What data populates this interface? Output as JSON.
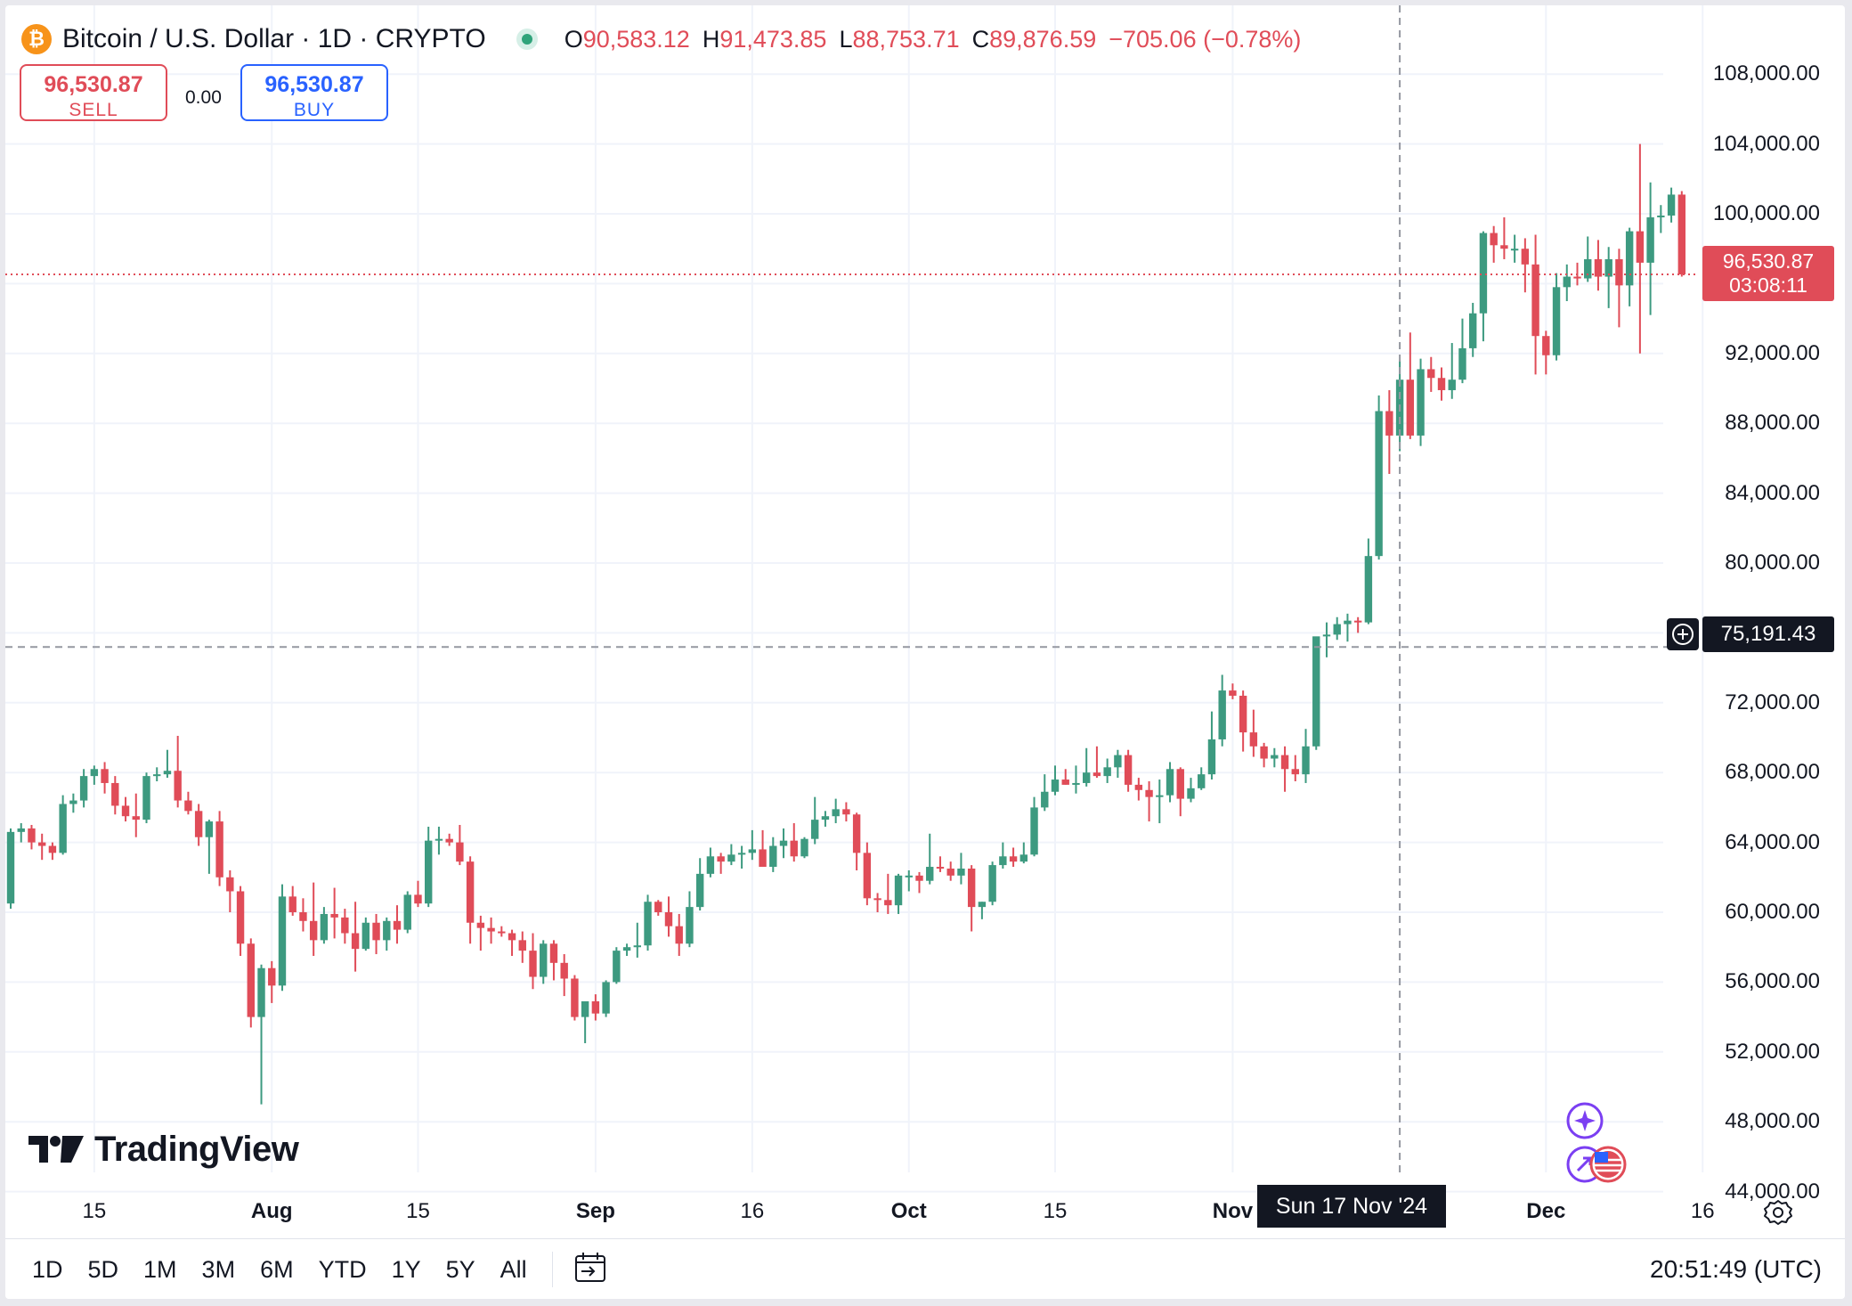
{
  "header": {
    "coin_symbol": "₿",
    "title": "Bitcoin / U.S. Dollar · 1D · CRYPTO",
    "ohlc": {
      "o_label": "O",
      "o_value": "90,583.12",
      "h_label": "H",
      "h_value": "91,473.85",
      "l_label": "L",
      "l_value": "88,753.71",
      "c_label": "C",
      "c_value": "89,876.59",
      "change": "−705.06 (−0.78%)"
    }
  },
  "trade": {
    "sell_price": "96,530.87",
    "sell_label": "SELL",
    "spread": "0.00",
    "buy_price": "96,530.87",
    "buy_label": "BUY"
  },
  "price_axis": {
    "labels": [
      "108,000.00",
      "104,000.00",
      "100,000.00",
      "92,000.00",
      "88,000.00",
      "84,000.00",
      "80,000.00",
      "72,000.00",
      "68,000.00",
      "64,000.00",
      "60,000.00",
      "56,000.00",
      "52,000.00",
      "48,000.00",
      "44,000.00"
    ],
    "current_price": "96,530.87",
    "countdown": "03:08:11",
    "crosshair_price": "75,191.43"
  },
  "time_axis": {
    "labels": [
      {
        "text": "15",
        "bold": false
      },
      {
        "text": "Aug",
        "bold": true
      },
      {
        "text": "15",
        "bold": false
      },
      {
        "text": "Sep",
        "bold": true
      },
      {
        "text": "16",
        "bold": false
      },
      {
        "text": "Oct",
        "bold": true
      },
      {
        "text": "15",
        "bold": false
      },
      {
        "text": "Nov",
        "bold": true
      },
      {
        "text": "Dec",
        "bold": true
      },
      {
        "text": "16",
        "bold": false
      }
    ],
    "crosshair_date": "Sun 17 Nov '24"
  },
  "logo": {
    "text": "TradingView"
  },
  "bottom_bar": {
    "ranges": [
      "1D",
      "5D",
      "1M",
      "3M",
      "6M",
      "YTD",
      "1Y",
      "5Y",
      "All"
    ],
    "clock": "20:51:49 (UTC)"
  },
  "icons": [
    "bitcoin-icon",
    "status-dot-icon",
    "crosshair-plus-icon",
    "settings-icon",
    "ai-sparkle-icon",
    "us-flag-icon",
    "calendar-goto-icon"
  ],
  "colors": {
    "up": "#3d9a80",
    "down": "#e04c58",
    "accent": "#2962ff",
    "dark": "#131722"
  },
  "chart_data": {
    "type": "candlestick",
    "symbol": "BTCUSD",
    "interval": "1D",
    "y_scale": {
      "min": 43000,
      "max": 110000
    },
    "x_range": [
      "2024-07-07",
      "2024-12-16"
    ],
    "grid": true,
    "current_price": 96530.87,
    "crosshair": {
      "date": "2024-11-17",
      "price": 75191.43
    },
    "start_date": "2024-07-07",
    "candles": [
      [
        60500,
        64800,
        60200,
        64600
      ],
      [
        64600,
        65100,
        64000,
        64800
      ],
      [
        64800,
        65000,
        63600,
        64000
      ],
      [
        64000,
        64500,
        63000,
        63800
      ],
      [
        63800,
        64000,
        63000,
        63400
      ],
      [
        63400,
        66700,
        63300,
        66200
      ],
      [
        66200,
        66800,
        65700,
        66400
      ],
      [
        66400,
        68200,
        66000,
        67800
      ],
      [
        67800,
        68400,
        67300,
        68200
      ],
      [
        68200,
        68600,
        66800,
        67400
      ],
      [
        67400,
        67800,
        65600,
        66100
      ],
      [
        66100,
        66600,
        65200,
        65500
      ],
      [
        65500,
        66800,
        64300,
        65300
      ],
      [
        65300,
        68000,
        65100,
        67800
      ],
      [
        67800,
        68300,
        67500,
        67900
      ],
      [
        67900,
        69300,
        67700,
        68100
      ],
      [
        68100,
        70100,
        66000,
        66400
      ],
      [
        66400,
        66900,
        65600,
        65800
      ],
      [
        65800,
        66200,
        63800,
        64300
      ],
      [
        64300,
        65300,
        62200,
        65200
      ],
      [
        65200,
        65800,
        61500,
        62000
      ],
      [
        62000,
        62400,
        60000,
        61200
      ],
      [
        61200,
        61500,
        57500,
        58200
      ],
      [
        58200,
        58500,
        53400,
        54000
      ],
      [
        54000,
        57000,
        49000,
        56800
      ],
      [
        56800,
        57200,
        54800,
        55800
      ],
      [
        55800,
        61600,
        55500,
        60900
      ],
      [
        60900,
        61500,
        59800,
        60000
      ],
      [
        60000,
        60800,
        58900,
        59500
      ],
      [
        59500,
        61700,
        57500,
        58400
      ],
      [
        58400,
        60300,
        58200,
        59900
      ],
      [
        59900,
        61400,
        58500,
        59700
      ],
      [
        59700,
        60200,
        58200,
        58800
      ],
      [
        58800,
        60600,
        56600,
        57900
      ],
      [
        57900,
        59700,
        57800,
        59400
      ],
      [
        59400,
        59900,
        57600,
        58400
      ],
      [
        58400,
        59700,
        57800,
        59500
      ],
      [
        59500,
        60400,
        58200,
        59000
      ],
      [
        59000,
        61200,
        58800,
        61000
      ],
      [
        61000,
        61800,
        60300,
        60500
      ],
      [
        60500,
        64900,
        60300,
        64100
      ],
      [
        64100,
        64900,
        63300,
        64200
      ],
      [
        64200,
        64500,
        63800,
        64000
      ],
      [
        64000,
        65000,
        62700,
        62900
      ],
      [
        62900,
        63200,
        58200,
        59400
      ],
      [
        59400,
        59800,
        57800,
        59100
      ],
      [
        59100,
        59700,
        58200,
        58900
      ],
      [
        58900,
        59200,
        58600,
        58800
      ],
      [
        58800,
        59000,
        57500,
        58400
      ],
      [
        58400,
        58900,
        57100,
        57800
      ],
      [
        57800,
        58800,
        55600,
        56300
      ],
      [
        56300,
        58400,
        55900,
        58200
      ],
      [
        58200,
        58400,
        56100,
        57100
      ],
      [
        57100,
        57600,
        55200,
        56200
      ],
      [
        56200,
        56400,
        53800,
        54000
      ],
      [
        54000,
        54400,
        52500,
        54900
      ],
      [
        54900,
        55300,
        53800,
        54200
      ],
      [
        54200,
        56100,
        54000,
        56000
      ],
      [
        56000,
        58000,
        55900,
        57800
      ],
      [
        57800,
        58200,
        57500,
        58000
      ],
      [
        58000,
        59400,
        57400,
        58100
      ],
      [
        58100,
        61000,
        57800,
        60600
      ],
      [
        60600,
        60700,
        59800,
        60000
      ],
      [
        60000,
        60900,
        58600,
        59200
      ],
      [
        59200,
        59900,
        57500,
        58200
      ],
      [
        58200,
        61200,
        58000,
        60300
      ],
      [
        60300,
        63100,
        60100,
        62200
      ],
      [
        62200,
        63700,
        62000,
        63200
      ],
      [
        63200,
        63400,
        62200,
        62900
      ],
      [
        62900,
        63900,
        62700,
        63300
      ],
      [
        63300,
        63800,
        62500,
        63400
      ],
      [
        63400,
        64700,
        63000,
        63600
      ],
      [
        63600,
        64700,
        62600,
        62600
      ],
      [
        62600,
        64300,
        62300,
        63800
      ],
      [
        63800,
        64800,
        63100,
        64100
      ],
      [
        64100,
        65100,
        62900,
        63200
      ],
      [
        63200,
        64300,
        63100,
        64200
      ],
      [
        64200,
        66600,
        63900,
        65300
      ],
      [
        65300,
        65800,
        64900,
        65500
      ],
      [
        65500,
        66500,
        65100,
        65900
      ],
      [
        65900,
        66300,
        65200,
        65600
      ],
      [
        65600,
        65700,
        62400,
        63400
      ],
      [
        63400,
        64000,
        60400,
        60800
      ],
      [
        60800,
        61100,
        60000,
        60700
      ],
      [
        60700,
        62200,
        59900,
        60400
      ],
      [
        60400,
        62200,
        59900,
        62100
      ],
      [
        62100,
        62400,
        61200,
        62100
      ],
      [
        62100,
        62300,
        61100,
        61800
      ],
      [
        61800,
        64500,
        61600,
        62600
      ],
      [
        62600,
        63200,
        62300,
        62500
      ],
      [
        62500,
        62900,
        61800,
        62100
      ],
      [
        62100,
        63400,
        61600,
        62500
      ],
      [
        62500,
        62700,
        58900,
        60300
      ],
      [
        60300,
        60600,
        59600,
        60600
      ],
      [
        60600,
        62900,
        60400,
        62700
      ],
      [
        62700,
        64000,
        62500,
        63200
      ],
      [
        63200,
        63700,
        62600,
        62900
      ],
      [
        62900,
        64000,
        62800,
        63300
      ],
      [
        63300,
        66600,
        63200,
        66000
      ],
      [
        66000,
        67900,
        65800,
        66900
      ],
      [
        66900,
        68400,
        66700,
        67600
      ],
      [
        67600,
        68200,
        67300,
        67300
      ],
      [
        67300,
        68400,
        66800,
        67400
      ],
      [
        67400,
        69400,
        67200,
        68000
      ],
      [
        68000,
        69500,
        67700,
        67800
      ],
      [
        67800,
        68800,
        67400,
        68300
      ],
      [
        68300,
        69300,
        67700,
        69000
      ],
      [
        69000,
        69300,
        66900,
        67300
      ],
      [
        67300,
        67700,
        66400,
        67000
      ],
      [
        67000,
        67500,
        65200,
        66600
      ],
      [
        66600,
        67600,
        65100,
        66700
      ],
      [
        66700,
        68600,
        66300,
        68200
      ],
      [
        68200,
        68300,
        65500,
        66500
      ],
      [
        66500,
        67700,
        66300,
        67100
      ],
      [
        67100,
        68300,
        67000,
        67900
      ],
      [
        67900,
        71500,
        67600,
        69900
      ],
      [
        69900,
        73600,
        69500,
        72700
      ],
      [
        72700,
        73100,
        72200,
        72400
      ],
      [
        72400,
        72700,
        69200,
        70300
      ],
      [
        70300,
        71600,
        68900,
        69500
      ],
      [
        69500,
        69700,
        68300,
        68800
      ],
      [
        68800,
        69400,
        68300,
        69000
      ],
      [
        69000,
        69500,
        66900,
        68200
      ],
      [
        68200,
        69000,
        67500,
        67900
      ],
      [
        67900,
        70500,
        67400,
        69500
      ],
      [
        69500,
        75600,
        69300,
        75800
      ],
      [
        75800,
        76600,
        74600,
        75900
      ],
      [
        75900,
        76900,
        75600,
        76500
      ],
      [
        76500,
        77100,
        75500,
        76700
      ],
      [
        76700,
        76900,
        76000,
        76600
      ],
      [
        76600,
        81400,
        76500,
        80400
      ],
      [
        80400,
        89600,
        80200,
        88700
      ],
      [
        88700,
        89900,
        85100,
        87300
      ],
      [
        87300,
        91600,
        86400,
        90500
      ],
      [
        90500,
        93200,
        87100,
        87300
      ],
      [
        87300,
        91700,
        86700,
        91100
      ],
      [
        91100,
        91800,
        89800,
        90600
      ],
      [
        90600,
        91200,
        89300,
        89900
      ],
      [
        89900,
        92600,
        89400,
        90500
      ],
      [
        90500,
        94000,
        90300,
        92300
      ],
      [
        92300,
        94900,
        91800,
        94300
      ],
      [
        94300,
        99000,
        92700,
        98900
      ],
      [
        98900,
        99300,
        97200,
        98200
      ],
      [
        98200,
        99800,
        97400,
        98000
      ],
      [
        98000,
        98800,
        97200,
        98000
      ],
      [
        98000,
        98600,
        95500,
        97100
      ],
      [
        97100,
        98800,
        90800,
        93000
      ],
      [
        93000,
        93300,
        90800,
        91900
      ],
      [
        91900,
        96600,
        91600,
        95800
      ],
      [
        95800,
        97100,
        95000,
        96400
      ],
      [
        96400,
        97200,
        95900,
        96300
      ],
      [
        96300,
        98700,
        96100,
        97400
      ],
      [
        97400,
        98500,
        95600,
        96400
      ],
      [
        96400,
        98100,
        94600,
        97400
      ],
      [
        97400,
        98000,
        93500,
        95900
      ],
      [
        95900,
        99200,
        94700,
        99000
      ],
      [
        99000,
        104000,
        92000,
        97200
      ],
      [
        97200,
        101800,
        94200,
        99800
      ],
      [
        99800,
        100500,
        98900,
        99900
      ],
      [
        99900,
        101500,
        99500,
        101100
      ],
      [
        101100,
        101300,
        96400,
        96530.87
      ]
    ]
  }
}
